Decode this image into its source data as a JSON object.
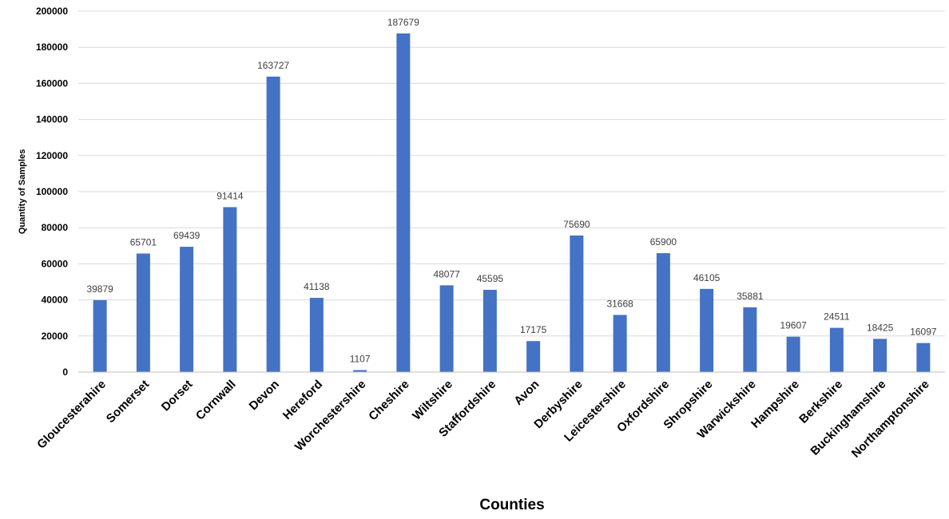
{
  "chart_data": {
    "type": "bar",
    "categories": [
      "Gloucesterahire",
      "Somerset",
      "Dorset",
      "Cornwall",
      "Devon",
      "Hereford",
      "Worchestershire",
      "Cheshire",
      "Wiltshire",
      "Staffordshire",
      "Avon",
      "Derbyshire",
      "Leicestershire",
      "Oxfordshire",
      "Shropshire",
      "Warwickshire",
      "Hampshire",
      "Berkshire",
      "Buckinghamshire",
      "Northamptonshire"
    ],
    "values": [
      39879,
      65701,
      69439,
      91414,
      163727,
      41138,
      1107,
      187679,
      48077,
      45595,
      17175,
      75690,
      31668,
      65900,
      46105,
      35881,
      19607,
      24511,
      18425,
      16097
    ],
    "data_labels": [
      "39879",
      "65701",
      "69439",
      "91414",
      "163727",
      "41138",
      "1107",
      "187679",
      "48077",
      "45595",
      "17175",
      "75690",
      "31668",
      "65900",
      "46105",
      "35881",
      "19607",
      "24511",
      "18425",
      "16097"
    ],
    "title": "",
    "xlabel": "Counties",
    "ylabel": "Quantity of Samples",
    "ylim": [
      0,
      200000
    ],
    "yticks": [
      0,
      20000,
      40000,
      60000,
      80000,
      100000,
      120000,
      140000,
      160000,
      180000,
      200000
    ],
    "ytick_labels": [
      "0",
      "20000",
      "40000",
      "60000",
      "80000",
      "100000",
      "120000",
      "140000",
      "160000",
      "180000",
      "200000"
    ],
    "grid": true,
    "legend": "none",
    "bar_color": "#4472c4"
  }
}
